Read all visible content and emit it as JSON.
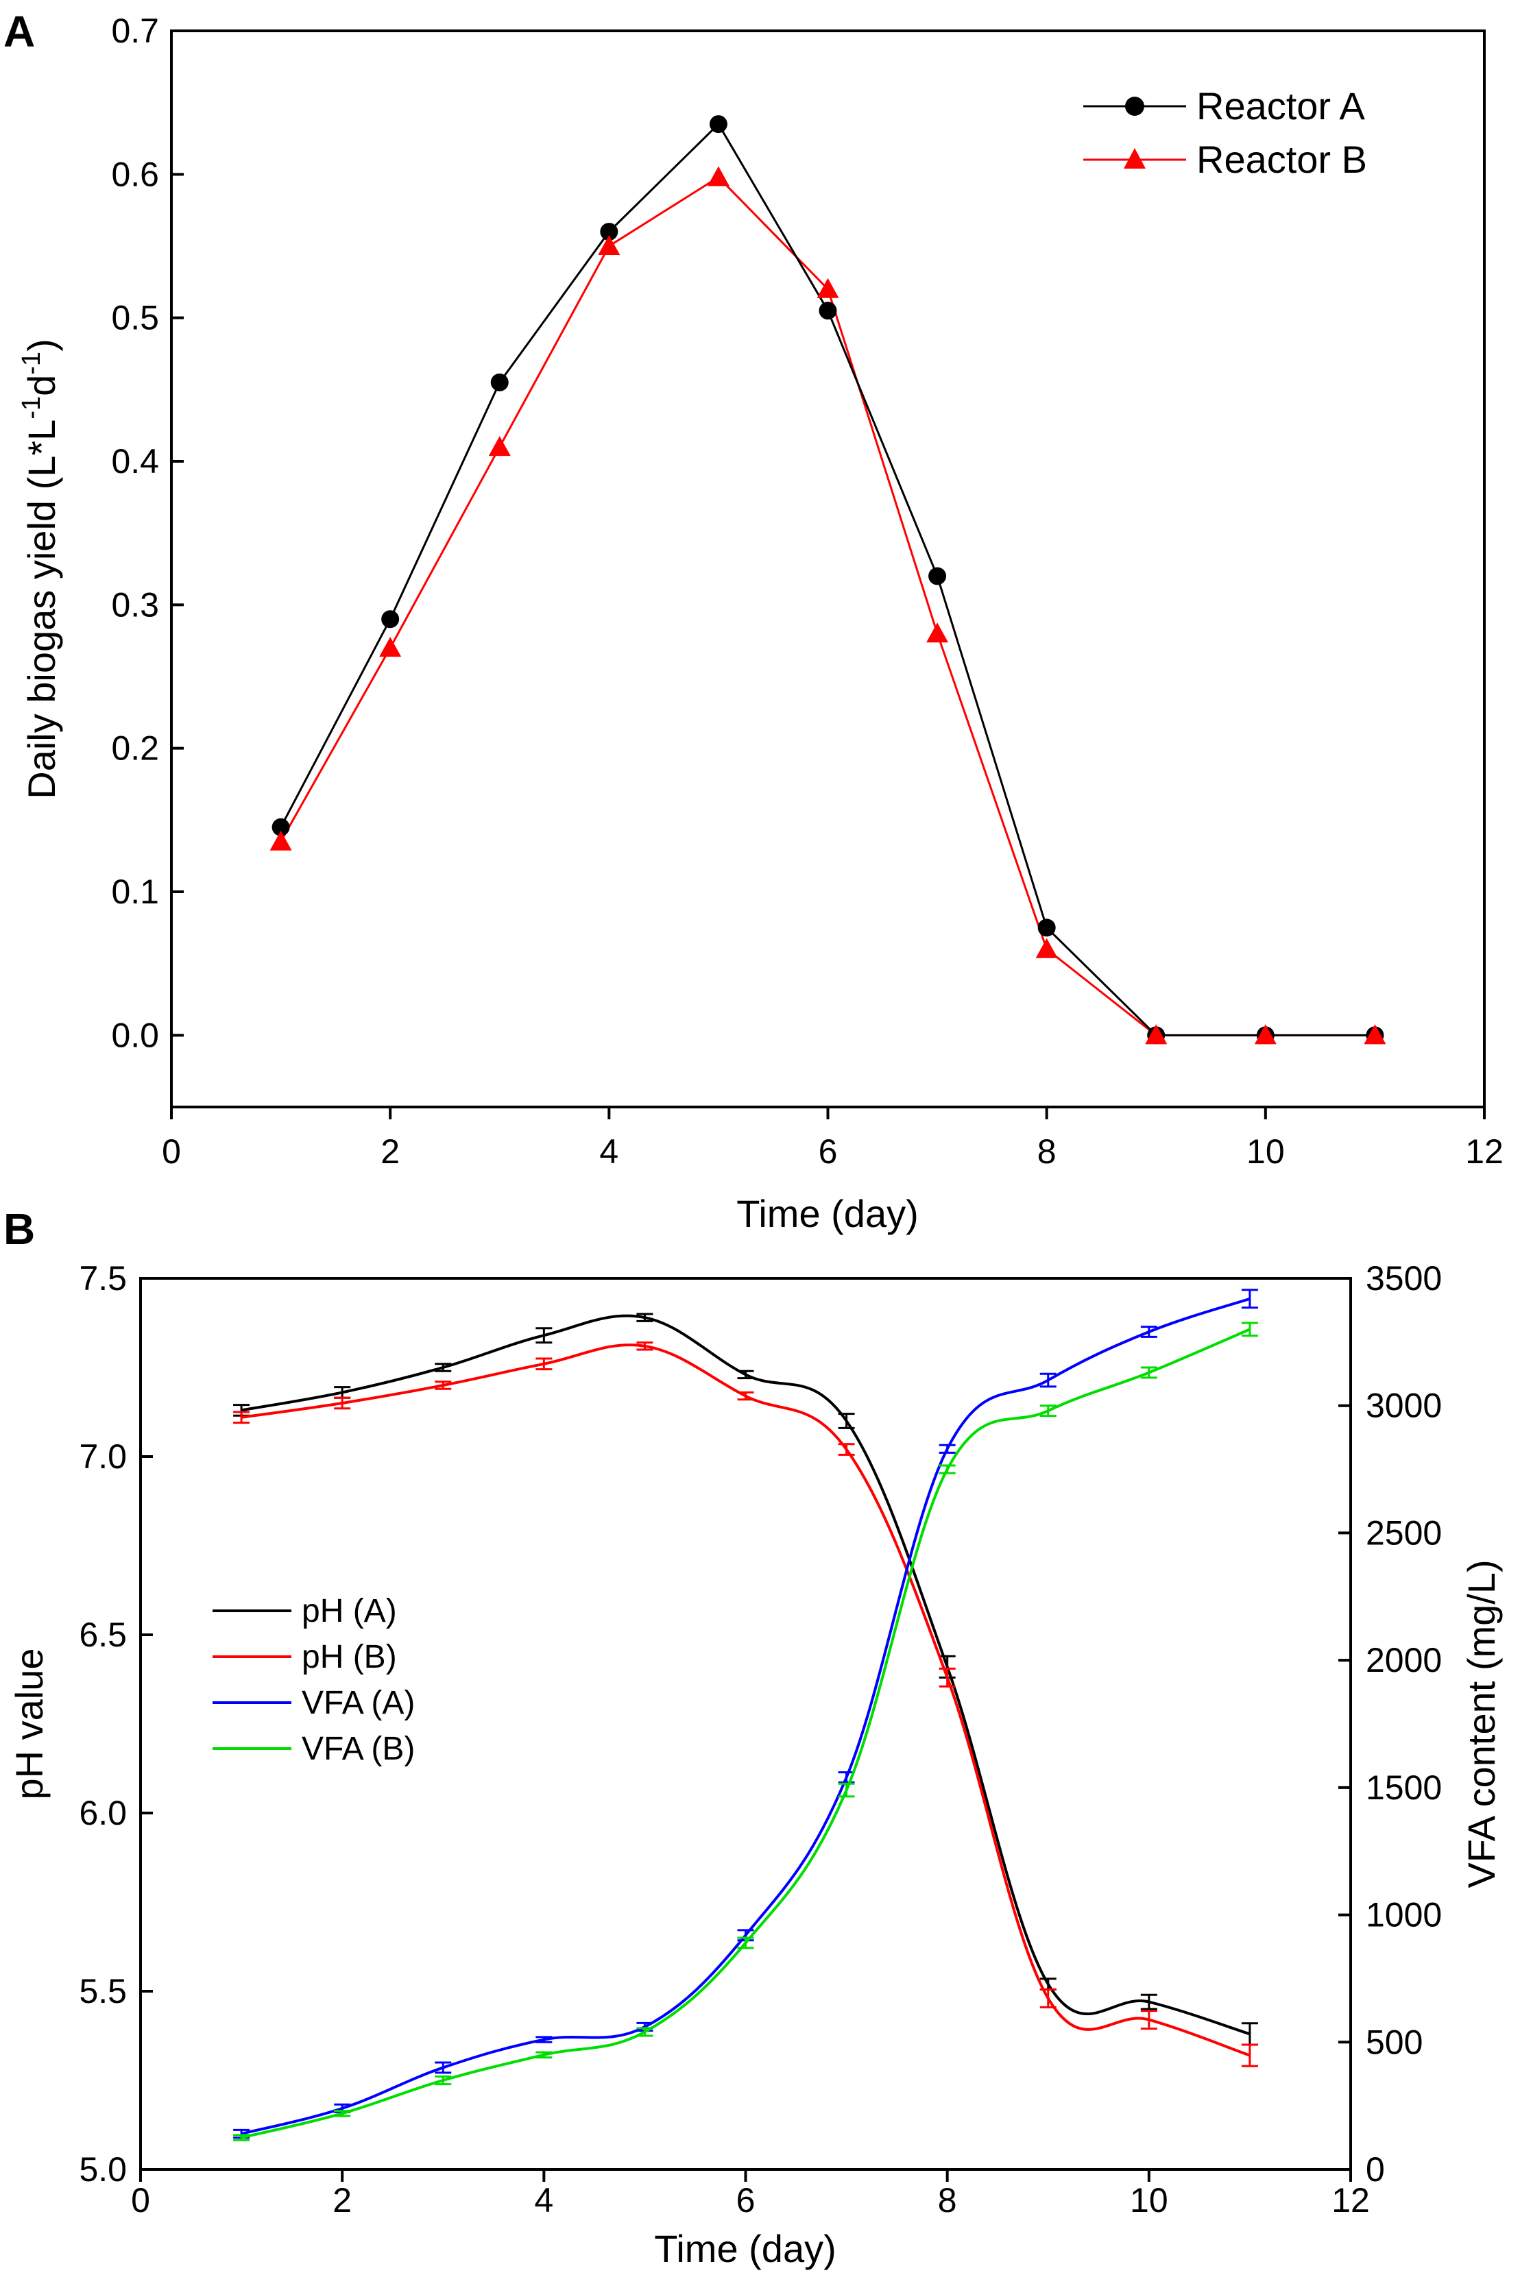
{
  "chart_data": [
    {
      "panel": "A",
      "type": "line",
      "title": "",
      "xlabel": "Time (day)",
      "ylabel_parts": [
        "Daily biogas yield (L*L",
        "-1",
        "d",
        "-1",
        ")"
      ],
      "ylabel": "Daily biogas yield (L*L-1d-1)",
      "xlim": [
        0,
        12
      ],
      "ylim": [
        -0.05,
        0.7
      ],
      "xticks": [
        0,
        2,
        4,
        6,
        8,
        10,
        12
      ],
      "yticks": [
        0.0,
        0.1,
        0.2,
        0.3,
        0.4,
        0.5,
        0.6,
        0.7
      ],
      "xtick_labels": [
        "0",
        "2",
        "4",
        "6",
        "8",
        "10",
        "12"
      ],
      "ytick_labels": [
        "0.0",
        "0.1",
        "0.2",
        "0.3",
        "0.4",
        "0.5",
        "0.6",
        "0.7"
      ],
      "grid": false,
      "legend_position": "top-right",
      "x": [
        1,
        2,
        3,
        4,
        5,
        6,
        7,
        8,
        9,
        10,
        11
      ],
      "series": [
        {
          "name": "Reactor A",
          "color": "#000000",
          "marker": "circle",
          "values": [
            0.145,
            0.29,
            0.455,
            0.56,
            0.635,
            0.505,
            0.32,
            0.075,
            0.0,
            0.0,
            0.0
          ]
        },
        {
          "name": "Reactor B",
          "color": "#ff0000",
          "marker": "triangle",
          "values": [
            0.135,
            0.27,
            0.41,
            0.55,
            0.598,
            0.52,
            0.28,
            0.06,
            0.0,
            0.0,
            0.0
          ]
        }
      ]
    },
    {
      "panel": "B",
      "type": "line",
      "title": "",
      "xlabel": "Time (day)",
      "ylabel": "pH value",
      "ylabel_right": "VFA content (mg/L)",
      "xlim": [
        0,
        12
      ],
      "ylim": [
        5.0,
        7.5
      ],
      "ylim_right": [
        0,
        3500
      ],
      "xticks": [
        0,
        2,
        4,
        6,
        8,
        10,
        12
      ],
      "yticks": [
        5.0,
        5.5,
        6.0,
        6.5,
        7.0,
        7.5
      ],
      "yticks_right": [
        0,
        500,
        1000,
        1500,
        2000,
        2500,
        3000,
        3500
      ],
      "xtick_labels": [
        "0",
        "2",
        "4",
        "6",
        "8",
        "10",
        "12"
      ],
      "ytick_labels": [
        "5.0",
        "5.5",
        "6.0",
        "6.5",
        "7.0",
        "7.5"
      ],
      "ytick_labels_right": [
        "0",
        "500",
        "1000",
        "1500",
        "2000",
        "2500",
        "3000",
        "3500"
      ],
      "grid": false,
      "legend_position": "center-left",
      "x": [
        1,
        2,
        3,
        4,
        5,
        6,
        7,
        8,
        9,
        10,
        11
      ],
      "series": [
        {
          "name": "pH (A)",
          "axis": "left",
          "color": "#000000",
          "values": [
            7.13,
            7.18,
            7.25,
            7.34,
            7.39,
            7.23,
            7.1,
            6.41,
            5.52,
            5.47,
            5.38
          ],
          "errors": [
            0.015,
            0.015,
            0.01,
            0.02,
            0.01,
            0.01,
            0.02,
            0.03,
            0.015,
            0.02,
            0.03
          ]
        },
        {
          "name": "pH (B)",
          "axis": "left",
          "color": "#ff0000",
          "values": [
            7.11,
            7.15,
            7.2,
            7.26,
            7.31,
            7.17,
            7.02,
            6.38,
            5.48,
            5.42,
            5.32
          ],
          "errors": [
            0.015,
            0.015,
            0.01,
            0.015,
            0.01,
            0.01,
            0.015,
            0.025,
            0.025,
            0.025,
            0.03
          ]
        },
        {
          "name": "VFA (A)",
          "axis": "right",
          "color": "#0000ff",
          "values": [
            140,
            240,
            400,
            510,
            560,
            920,
            1540,
            2830,
            3100,
            3290,
            3420
          ],
          "errors": [
            15,
            15,
            20,
            10,
            15,
            20,
            20,
            15,
            25,
            20,
            35
          ]
        },
        {
          "name": "VFA (B)",
          "axis": "right",
          "color": "#00dd00",
          "values": [
            125,
            220,
            350,
            450,
            540,
            890,
            1490,
            2750,
            2980,
            3130,
            3300
          ],
          "errors": [
            10,
            10,
            15,
            10,
            15,
            20,
            25,
            15,
            20,
            20,
            25
          ]
        }
      ]
    }
  ]
}
